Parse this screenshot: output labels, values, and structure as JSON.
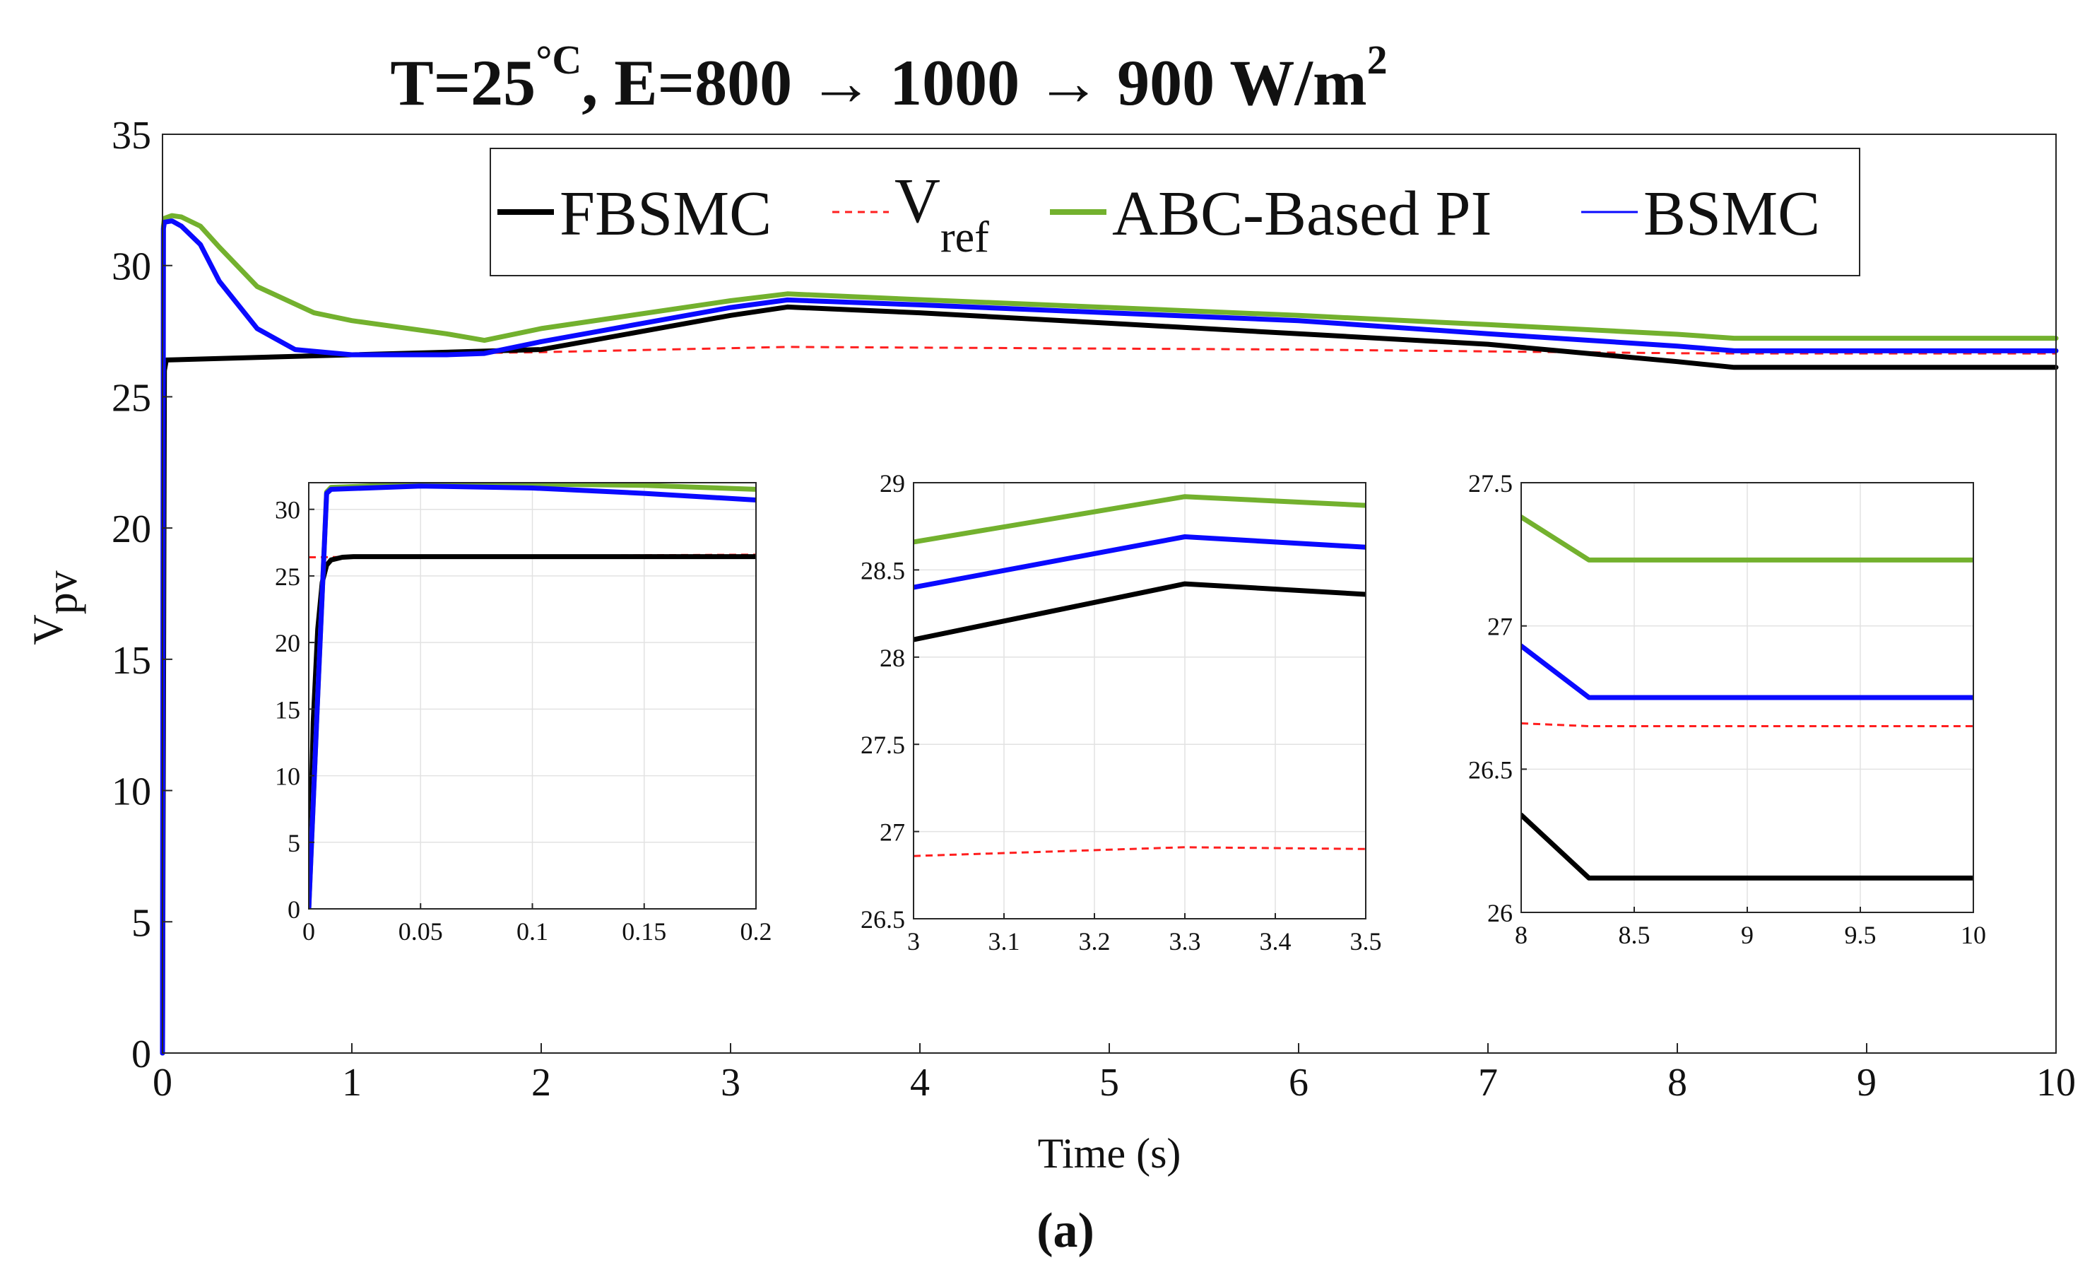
{
  "title": {
    "prefix": "T=25",
    "degree": "°C",
    "middle": ", E=800 → 1000 → 900 W/m",
    "exponent": "2"
  },
  "caption": "(a)",
  "colors": {
    "FBSMC": "#000000",
    "Vref": "#ff1f1f",
    "ABC-Based PI": "#73b12e",
    "BSMC": "#0a0aff"
  },
  "legend": {
    "entries": [
      {
        "key": "FBSMC",
        "label": "FBSMC",
        "sub": "",
        "style": "solid-thick"
      },
      {
        "key": "Vref",
        "label": "V",
        "sub": "ref",
        "style": "dashed"
      },
      {
        "key": "ABC-Based PI",
        "label": "ABC-Based PI",
        "sub": "",
        "style": "solid-thick"
      },
      {
        "key": "BSMC",
        "label": "BSMC",
        "sub": "",
        "style": "solid-thin"
      }
    ]
  },
  "chart_data": [
    {
      "type": "line",
      "role": "main",
      "xlabel": "Time (s)",
      "ylabel": "V",
      "ylabel_sub": "pv",
      "xlim": [
        0,
        10
      ],
      "ylim": [
        0,
        35
      ],
      "xticks": [
        0,
        1,
        2,
        3,
        4,
        5,
        6,
        7,
        8,
        9,
        10
      ],
      "yticks": [
        0,
        5,
        10,
        15,
        20,
        25,
        30,
        35
      ],
      "grid": false,
      "legend_position": "top-center",
      "series": [
        {
          "key": "Vref",
          "x": [
            0,
            0.005,
            1,
            2,
            3.3,
            6,
            8,
            8.3,
            10
          ],
          "y": [
            0,
            26.4,
            26.6,
            26.7,
            26.9,
            26.8,
            26.66,
            26.65,
            26.65
          ]
        },
        {
          "key": "FBSMC",
          "x": [
            0,
            0.01,
            0.02,
            0.5,
            1,
            2,
            3,
            3.3,
            4,
            5,
            6,
            7,
            8,
            8.3,
            10
          ],
          "y": [
            0,
            26.0,
            26.4,
            26.5,
            26.6,
            26.8,
            28.1,
            28.42,
            28.2,
            27.8,
            27.4,
            27.0,
            26.34,
            26.12,
            26.12
          ]
        },
        {
          "key": "ABC-Based PI",
          "x": [
            0,
            0.005,
            0.01,
            0.05,
            0.1,
            0.2,
            0.3,
            0.5,
            0.8,
            1.0,
            1.5,
            1.7,
            2,
            3,
            3.3,
            4,
            5,
            6,
            7,
            8,
            8.3,
            10
          ],
          "y": [
            0,
            31.5,
            31.8,
            31.9,
            31.85,
            31.5,
            30.7,
            29.2,
            28.2,
            27.9,
            27.4,
            27.15,
            27.6,
            28.66,
            28.92,
            28.7,
            28.4,
            28.1,
            27.75,
            27.38,
            27.23,
            27.23
          ]
        },
        {
          "key": "BSMC",
          "x": [
            0,
            0.005,
            0.01,
            0.05,
            0.1,
            0.2,
            0.3,
            0.5,
            0.7,
            1.0,
            1.5,
            1.7,
            2,
            3,
            3.3,
            4,
            5,
            6,
            7,
            8,
            8.3,
            10
          ],
          "y": [
            0,
            31.4,
            31.65,
            31.7,
            31.5,
            30.8,
            29.4,
            27.6,
            26.8,
            26.6,
            26.6,
            26.65,
            27.1,
            28.4,
            28.69,
            28.5,
            28.2,
            27.9,
            27.4,
            26.93,
            26.75,
            26.75
          ]
        }
      ]
    },
    {
      "type": "line",
      "role": "inset-1",
      "xlim": [
        0,
        0.2
      ],
      "ylim": [
        0,
        32
      ],
      "xticks": [
        0,
        0.05,
        0.1,
        0.15,
        0.2
      ],
      "yticks": [
        0,
        5,
        10,
        15,
        20,
        25,
        30
      ],
      "grid": true,
      "series": [
        {
          "key": "Vref",
          "x": [
            0,
            0.2
          ],
          "y": [
            26.4,
            26.6
          ]
        },
        {
          "key": "FBSMC",
          "x": [
            0,
            0.002,
            0.004,
            0.006,
            0.008,
            0.01,
            0.015,
            0.02,
            0.2
          ],
          "y": [
            0,
            14,
            21,
            24.5,
            25.8,
            26.2,
            26.4,
            26.45,
            26.45
          ]
        },
        {
          "key": "ABC-Based PI",
          "x": [
            0,
            0.004,
            0.008,
            0.01,
            0.05,
            0.1,
            0.15,
            0.2
          ],
          "y": [
            0,
            16,
            31.3,
            31.65,
            31.9,
            31.9,
            31.8,
            31.5
          ]
        },
        {
          "key": "BSMC",
          "x": [
            0,
            0.004,
            0.008,
            0.01,
            0.05,
            0.1,
            0.15,
            0.2
          ],
          "y": [
            0,
            16,
            31.2,
            31.5,
            31.75,
            31.6,
            31.2,
            30.7
          ]
        }
      ]
    },
    {
      "type": "line",
      "role": "inset-2",
      "xlim": [
        3,
        3.5
      ],
      "ylim": [
        26.5,
        29
      ],
      "xticks": [
        3,
        3.1,
        3.2,
        3.3,
        3.4,
        3.5
      ],
      "yticks": [
        26.5,
        27,
        27.5,
        28,
        28.5,
        29
      ],
      "grid": true,
      "series": [
        {
          "key": "Vref",
          "x": [
            3,
            3.3,
            3.5
          ],
          "y": [
            26.86,
            26.91,
            26.9
          ]
        },
        {
          "key": "FBSMC",
          "x": [
            3,
            3.3,
            3.5
          ],
          "y": [
            28.1,
            28.42,
            28.36
          ]
        },
        {
          "key": "ABC-Based PI",
          "x": [
            3,
            3.3,
            3.5
          ],
          "y": [
            28.66,
            28.92,
            28.87
          ]
        },
        {
          "key": "BSMC",
          "x": [
            3,
            3.3,
            3.5
          ],
          "y": [
            28.4,
            28.69,
            28.63
          ]
        }
      ]
    },
    {
      "type": "line",
      "role": "inset-3",
      "xlim": [
        8,
        10
      ],
      "ylim": [
        26,
        27.5
      ],
      "xticks": [
        8,
        8.5,
        9,
        9.5,
        10
      ],
      "yticks": [
        26,
        26.5,
        27,
        27.5
      ],
      "grid": true,
      "series": [
        {
          "key": "Vref",
          "x": [
            8,
            8.3,
            10
          ],
          "y": [
            26.66,
            26.65,
            26.65
          ]
        },
        {
          "key": "FBSMC",
          "x": [
            8,
            8.3,
            10
          ],
          "y": [
            26.34,
            26.12,
            26.12
          ]
        },
        {
          "key": "ABC-Based PI",
          "x": [
            8,
            8.3,
            10
          ],
          "y": [
            27.38,
            27.23,
            27.23
          ]
        },
        {
          "key": "BSMC",
          "x": [
            8,
            8.3,
            10
          ],
          "y": [
            26.93,
            26.75,
            26.75
          ]
        }
      ]
    }
  ]
}
